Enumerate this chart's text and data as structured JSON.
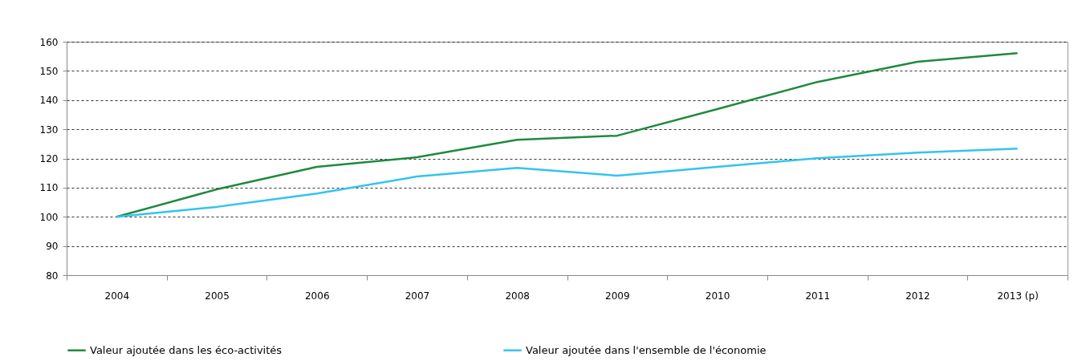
{
  "chart_data": {
    "type": "line",
    "categories": [
      "2004",
      "2005",
      "2006",
      "2007",
      "2008",
      "2009",
      "2010",
      "2011",
      "2012",
      "2013 (p)"
    ],
    "series": [
      {
        "name": "Valeur ajoutée dans les éco-activités",
        "color": "#1e8a3e",
        "values": [
          100,
          109.4,
          117.1,
          120.4,
          126.4,
          127.8,
          136.9,
          146.2,
          153.1,
          156.1
        ]
      },
      {
        "name": "Valeur ajoutée dans l'ensemble de l'économie",
        "color": "#33c3ef",
        "values": [
          100,
          103.4,
          108,
          113.8,
          116.8,
          114.1,
          117.1,
          120.1,
          122,
          123.4
        ]
      }
    ],
    "ylim": [
      80,
      160
    ],
    "yticks": [
      80,
      90,
      100,
      110,
      120,
      130,
      140,
      150,
      160
    ],
    "grid": "y",
    "legend": "bottom",
    "marker": "none",
    "line_style": "solid"
  }
}
